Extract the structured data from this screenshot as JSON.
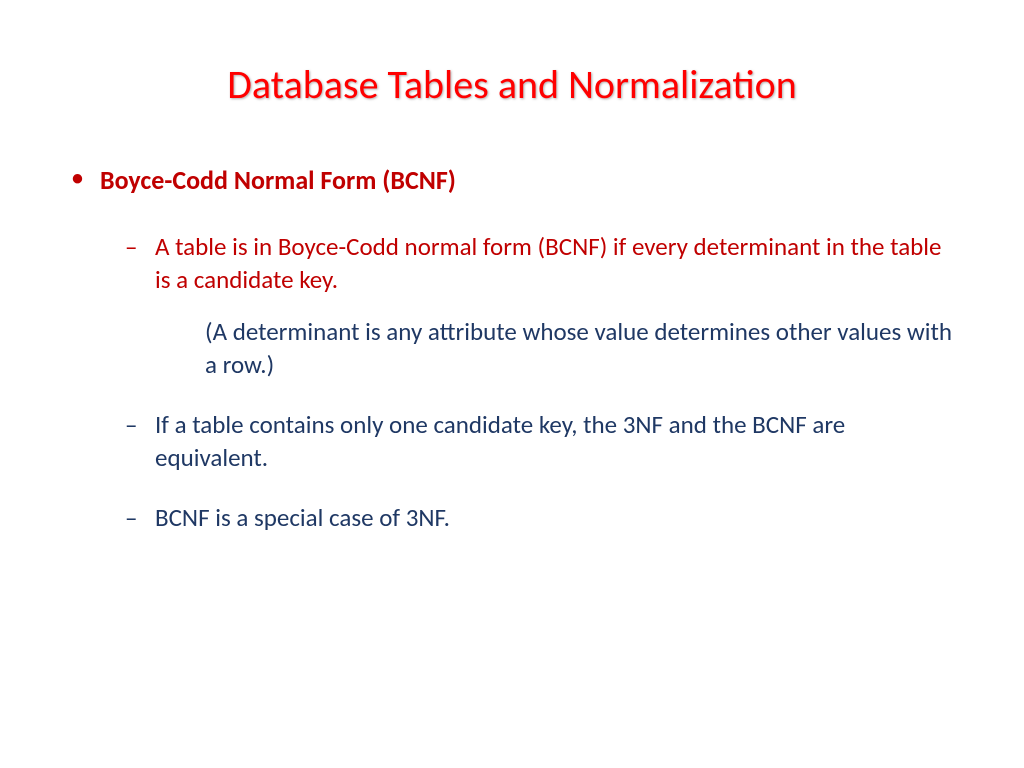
{
  "slide": {
    "title": "Database Tables and Normalization",
    "title_color": "#ff0000",
    "title_fontsize": 40,
    "background_color": "#ffffff",
    "heading": "Boyce-Codd Normal Form (BCNF)",
    "heading_color": "#c00000",
    "heading_fontsize": 26,
    "points": [
      {
        "text": "A table is in Boyce-Codd normal form (BCNF) if every determinant in the table is a candidate key.",
        "color": "#c00000",
        "note": "(A determinant is any attribute whose value determines other values with a row.)",
        "note_color": "#1f3864"
      },
      {
        "text": "If a table contains only one candidate key, the 3NF and the BCNF are equivalent.",
        "color": "#1f3864"
      },
      {
        "text": "BCNF is a special case of 3NF.",
        "color": "#1f3864"
      }
    ],
    "body_fontsize": 25,
    "bullet_level1_marker": "•",
    "bullet_level2_marker": "–"
  }
}
